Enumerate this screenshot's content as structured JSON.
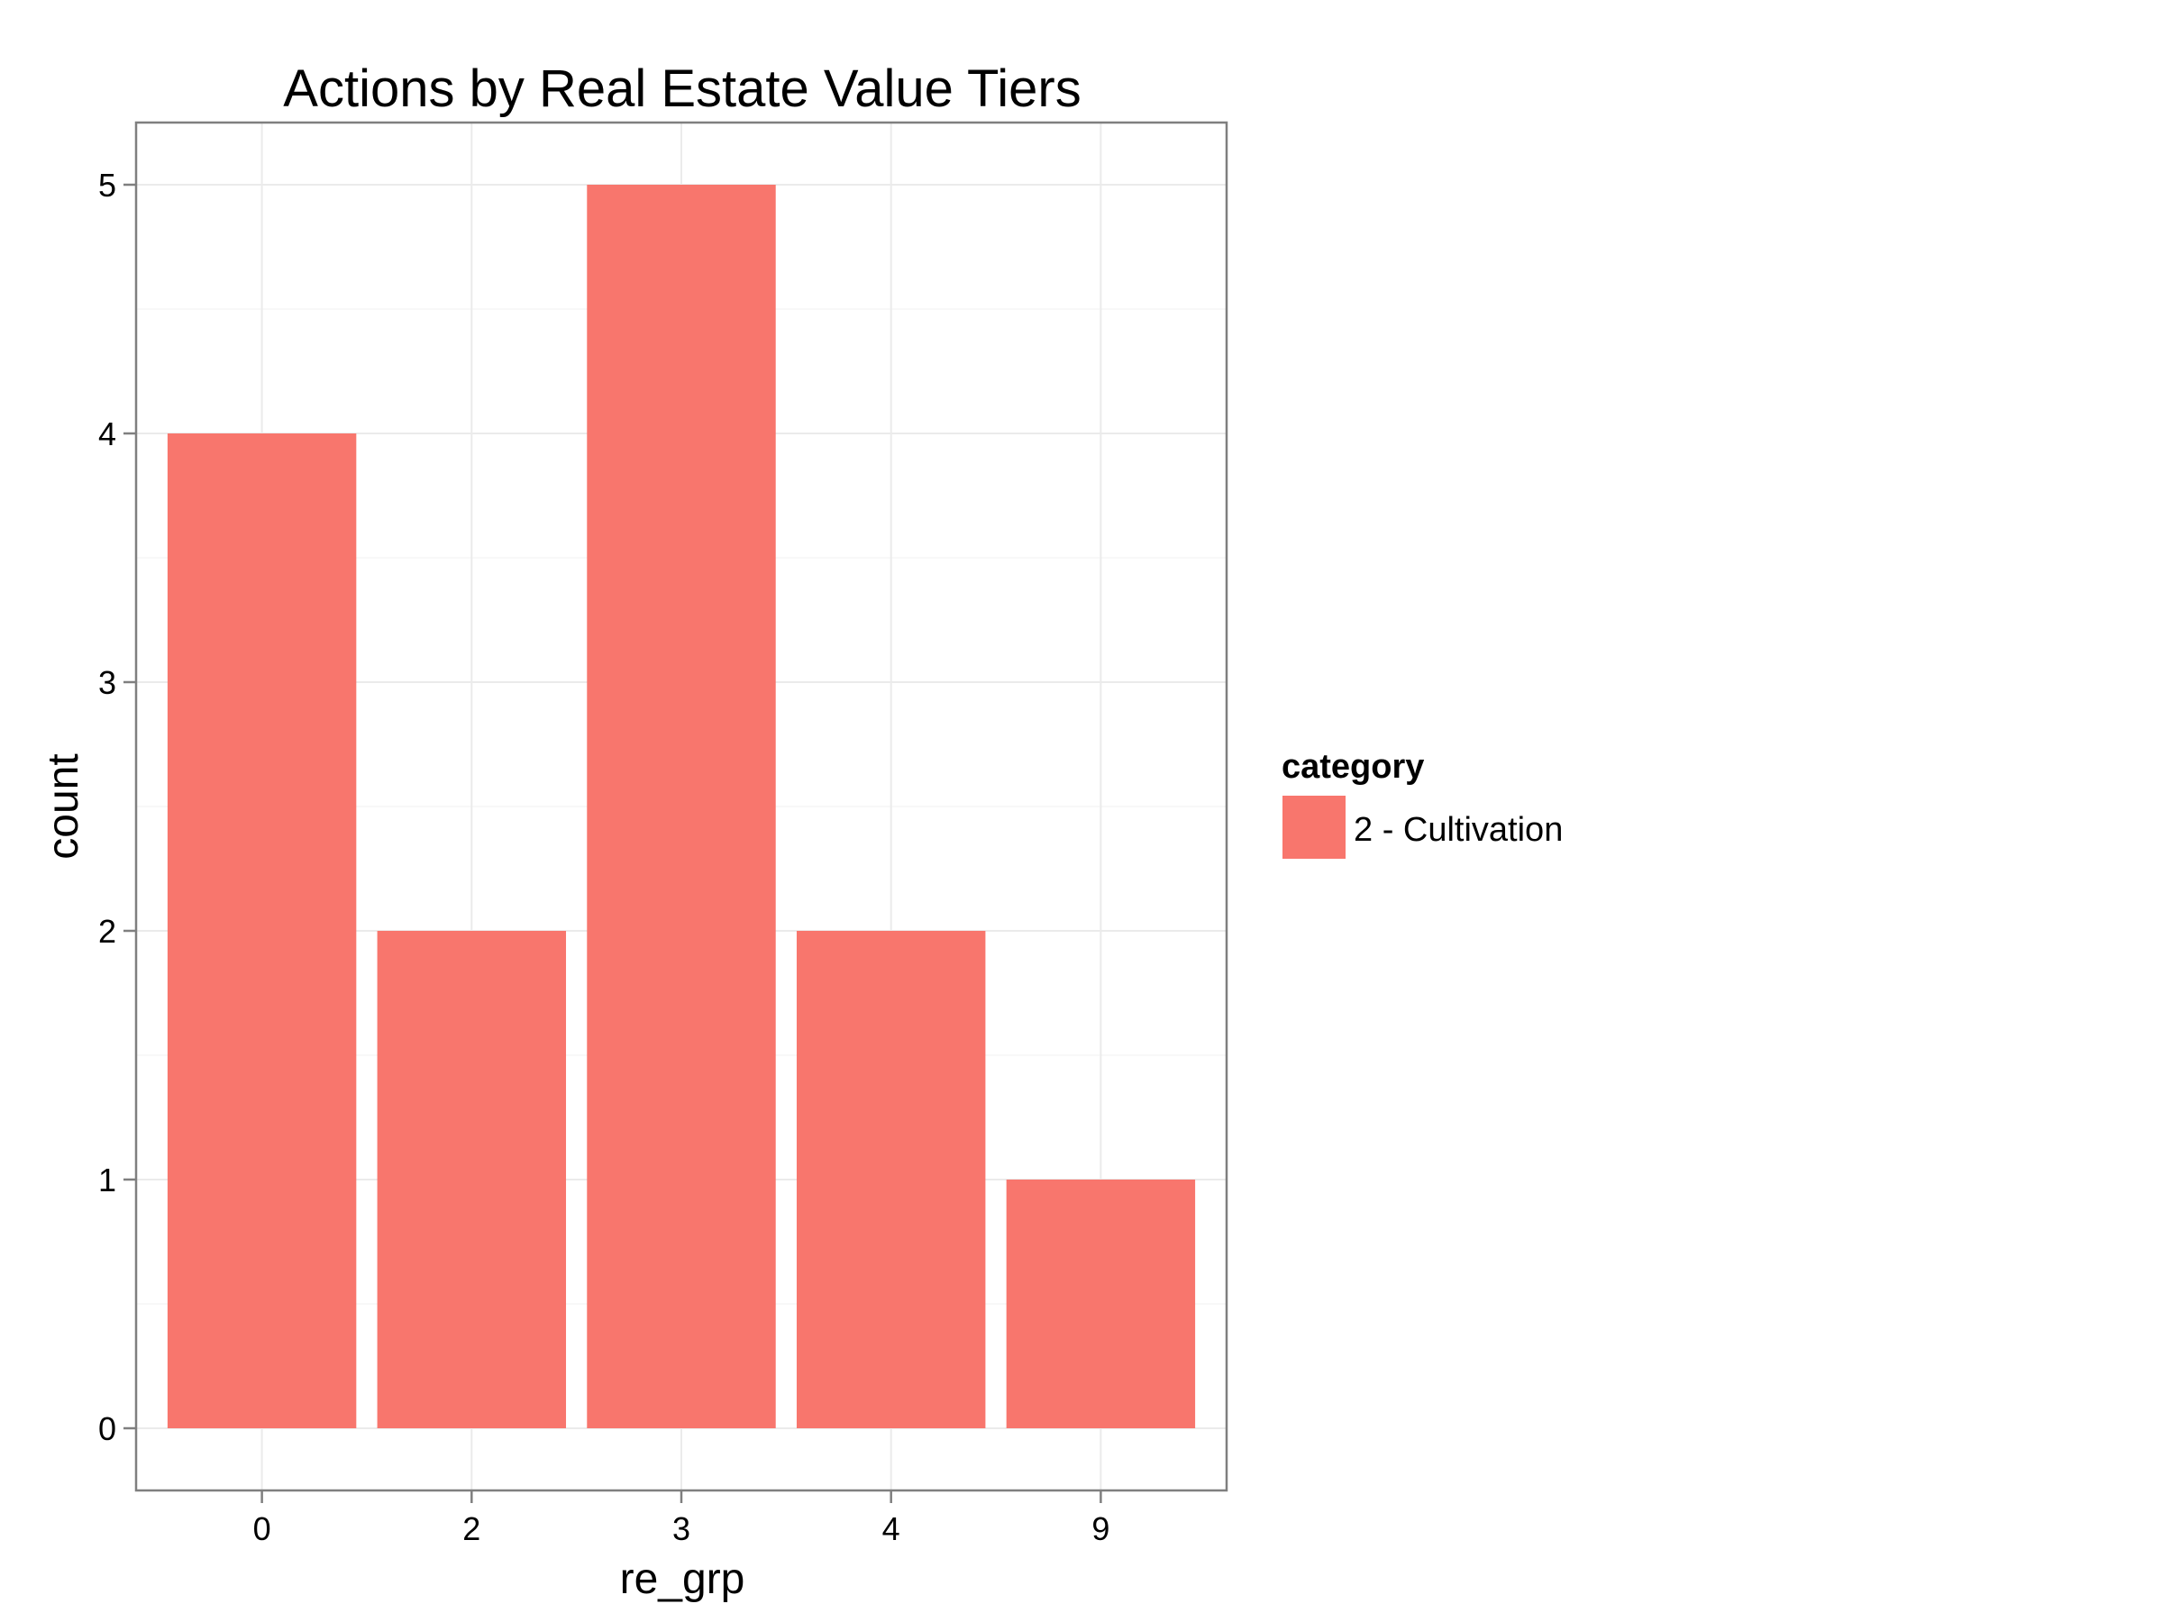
{
  "chart_data": {
    "type": "bar",
    "title": "Actions by Real Estate Value Tiers",
    "xlabel": "re_grp",
    "ylabel": "count",
    "categories": [
      "0",
      "2",
      "3",
      "4",
      "9"
    ],
    "series": [
      {
        "name": "2 - Cultivation",
        "values": [
          4,
          2,
          5,
          2,
          1
        ]
      }
    ],
    "ylim": [
      -0.25,
      5.25
    ],
    "yticks": [
      "0",
      "1",
      "2",
      "3",
      "4",
      "5"
    ],
    "grid": true,
    "legend": {
      "title": "category",
      "position": "right",
      "entries": [
        "2 - Cultivation"
      ]
    },
    "colors": {
      "bar": "#F8766D",
      "panel_border": "#7F7F7F",
      "grid_major": "#EBEBEB",
      "grid_minor": "#F5F5F5"
    }
  }
}
